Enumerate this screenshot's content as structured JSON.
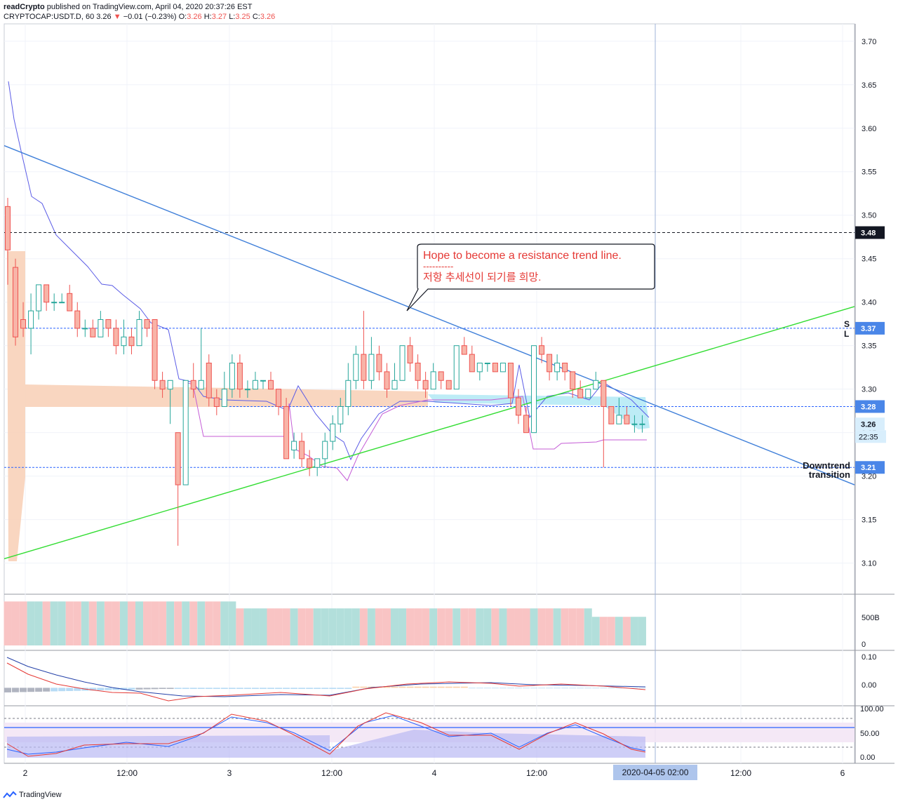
{
  "header": {
    "author": "readCrypto",
    "published_text": "published on TradingView.com, April 04, 2020 20:37:26 EST",
    "symbol": "CRYPTOCAP:USDT.D, 60",
    "last": "3.26",
    "change": "−0.01 (−0.23%)",
    "o_label": "O:",
    "o": "3.26",
    "h_label": "H:",
    "h": "3.27",
    "l_label": "L:",
    "l": "3.25",
    "c_label": "C:",
    "c": "3.26"
  },
  "footer": {
    "brand": "TradingView"
  },
  "colors": {
    "up": "#26a69a",
    "down": "#ef5350",
    "up_fill": "#ffffff",
    "down_fill": "#f8b4a8",
    "trend_blue": "#3f7fd9",
    "trend_green": "#33dd33",
    "level_blue": "#2962ff",
    "ma_blue": "#5b5ce6",
    "purple": "#c45cd6",
    "cloud_peach": "#f8cfb5",
    "cloud_cyan": "#b6eaf5"
  },
  "chart_data": {
    "type": "candlestick",
    "price_axis": {
      "ylim": [
        3.065,
        3.72
      ],
      "ticks": [
        "3.10",
        "3.15",
        "3.20",
        "3.25",
        "3.30",
        "3.35",
        "3.40",
        "3.45",
        "3.50",
        "3.55",
        "3.60",
        "3.65",
        "3.70"
      ]
    },
    "time_axis": {
      "labels": [
        "2",
        "12:00",
        "3",
        "12:00",
        "4",
        "12:00",
        "12:00",
        "6"
      ],
      "cursor_label": "2020-04-05   02:00"
    },
    "price_labels": [
      {
        "value": 3.48,
        "text": "3.48",
        "style": "black"
      },
      {
        "value": 3.37,
        "text": "3.37",
        "style": "blue"
      },
      {
        "value": 3.28,
        "text": "3.28",
        "style": "blue"
      },
      {
        "value": 3.26,
        "text": "3.26",
        "style": "light"
      },
      {
        "value": 3.21,
        "text": "3.21",
        "style": "blue"
      }
    ],
    "countdown": "22:35",
    "levels": [
      3.48,
      3.37,
      3.28,
      3.21
    ],
    "annotations": {
      "callout_en": "Hope to become a resistance trend line.",
      "callout_sep": "----------",
      "callout_kr": "저항 추세선이 되기를 희망.",
      "downtrend_1": "Downtrend",
      "downtrend_2": "transition",
      "s_mark": "S",
      "l_mark": "L"
    },
    "trendlines": [
      {
        "name": "resistance",
        "from": [
          0,
          3.58
        ],
        "to": [
          100,
          3.19
        ]
      },
      {
        "name": "support",
        "from": [
          0,
          3.105
        ],
        "to": [
          100,
          3.395
        ]
      }
    ],
    "candles": [
      [
        3.51,
        3.46,
        3.52,
        3.42
      ],
      [
        3.44,
        3.36,
        3.45,
        3.35
      ],
      [
        3.38,
        3.37,
        3.4,
        3.36
      ],
      [
        3.37,
        3.39,
        3.41,
        3.34
      ],
      [
        3.39,
        3.42,
        3.42,
        3.38
      ],
      [
        3.42,
        3.4,
        3.42,
        3.39
      ],
      [
        3.4,
        3.4,
        3.41,
        3.39
      ],
      [
        3.4,
        3.4,
        3.41,
        3.4
      ],
      [
        3.41,
        3.39,
        3.42,
        3.39
      ],
      [
        3.39,
        3.37,
        3.4,
        3.36
      ],
      [
        3.37,
        3.37,
        3.38,
        3.36
      ],
      [
        3.37,
        3.36,
        3.38,
        3.36
      ],
      [
        3.36,
        3.38,
        3.39,
        3.36
      ],
      [
        3.38,
        3.37,
        3.38,
        3.36
      ],
      [
        3.37,
        3.35,
        3.38,
        3.34
      ],
      [
        3.35,
        3.36,
        3.38,
        3.34
      ],
      [
        3.36,
        3.35,
        3.37,
        3.34
      ],
      [
        3.35,
        3.38,
        3.39,
        3.35
      ],
      [
        3.38,
        3.37,
        3.38,
        3.36
      ],
      [
        3.38,
        3.31,
        3.38,
        3.3
      ],
      [
        3.31,
        3.3,
        3.32,
        3.29
      ],
      [
        3.3,
        3.31,
        3.31,
        3.26
      ],
      [
        3.25,
        3.19,
        3.25,
        3.12
      ],
      [
        3.19,
        3.31,
        3.31,
        3.19
      ],
      [
        3.31,
        3.3,
        3.33,
        3.29
      ],
      [
        3.3,
        3.31,
        3.37,
        3.3
      ],
      [
        3.33,
        3.29,
        3.34,
        3.28
      ],
      [
        3.29,
        3.28,
        3.3,
        3.27
      ],
      [
        3.28,
        3.3,
        3.32,
        3.28
      ],
      [
        3.3,
        3.33,
        3.34,
        3.29
      ],
      [
        3.33,
        3.3,
        3.34,
        3.29
      ],
      [
        3.3,
        3.3,
        3.31,
        3.29
      ],
      [
        3.3,
        3.31,
        3.32,
        3.3
      ],
      [
        3.31,
        3.31,
        3.31,
        3.3
      ],
      [
        3.31,
        3.3,
        3.32,
        3.3
      ],
      [
        3.3,
        3.28,
        3.3,
        3.27
      ],
      [
        3.28,
        3.22,
        3.29,
        3.22
      ],
      [
        3.23,
        3.24,
        3.25,
        3.22
      ],
      [
        3.24,
        3.22,
        3.25,
        3.21
      ],
      [
        3.22,
        3.21,
        3.23,
        3.2
      ],
      [
        3.21,
        3.22,
        3.22,
        3.2
      ],
      [
        3.22,
        3.24,
        3.25,
        3.21
      ],
      [
        3.24,
        3.26,
        3.27,
        3.23
      ],
      [
        3.26,
        3.28,
        3.29,
        3.25
      ],
      [
        3.28,
        3.31,
        3.33,
        3.27
      ],
      [
        3.31,
        3.34,
        3.35,
        3.3
      ],
      [
        3.34,
        3.31,
        3.39,
        3.3
      ],
      [
        3.31,
        3.34,
        3.36,
        3.3
      ],
      [
        3.34,
        3.32,
        3.35,
        3.31
      ],
      [
        3.32,
        3.3,
        3.33,
        3.29
      ],
      [
        3.3,
        3.31,
        3.33,
        3.3
      ],
      [
        3.31,
        3.35,
        3.35,
        3.31
      ],
      [
        3.35,
        3.33,
        3.36,
        3.32
      ],
      [
        3.33,
        3.31,
        3.34,
        3.3
      ],
      [
        3.31,
        3.3,
        3.32,
        3.29
      ],
      [
        3.3,
        3.32,
        3.33,
        3.3
      ],
      [
        3.32,
        3.31,
        3.32,
        3.3
      ],
      [
        3.31,
        3.3,
        3.31,
        3.3
      ],
      [
        3.3,
        3.35,
        3.35,
        3.3
      ],
      [
        3.35,
        3.34,
        3.36,
        3.34
      ],
      [
        3.34,
        3.32,
        3.35,
        3.32
      ],
      [
        3.32,
        3.33,
        3.33,
        3.31
      ],
      [
        3.33,
        3.33,
        3.33,
        3.32
      ],
      [
        3.33,
        3.32,
        3.33,
        3.32
      ],
      [
        3.32,
        3.33,
        3.33,
        3.32
      ],
      [
        3.33,
        3.29,
        3.33,
        3.28
      ],
      [
        3.29,
        3.27,
        3.3,
        3.26
      ],
      [
        3.27,
        3.25,
        3.28,
        3.25
      ],
      [
        3.25,
        3.35,
        3.35,
        3.25
      ],
      [
        3.35,
        3.34,
        3.36,
        3.33
      ],
      [
        3.34,
        3.32,
        3.34,
        3.31
      ],
      [
        3.32,
        3.33,
        3.34,
        3.31
      ],
      [
        3.33,
        3.32,
        3.33,
        3.31
      ],
      [
        3.32,
        3.3,
        3.32,
        3.29
      ],
      [
        3.3,
        3.29,
        3.31,
        3.29
      ],
      [
        3.29,
        3.3,
        3.3,
        3.29
      ],
      [
        3.3,
        3.31,
        3.32,
        3.3
      ],
      [
        3.31,
        3.28,
        3.31,
        3.21
      ],
      [
        3.28,
        3.26,
        3.28,
        3.26
      ],
      [
        3.26,
        3.27,
        3.29,
        3.26
      ],
      [
        3.27,
        3.26,
        3.28,
        3.26
      ],
      [
        3.26,
        3.26,
        3.27,
        3.25
      ],
      [
        3.26,
        3.26,
        3.27,
        3.25
      ]
    ],
    "volume": {
      "scale_ticks": [
        "500B",
        "0"
      ],
      "ylim": [
        0,
        750
      ]
    },
    "macd": {
      "scale_ticks": [
        "0.10",
        "0.00"
      ],
      "ylim": [
        -0.06,
        0.13
      ]
    },
    "stoch_rsi": {
      "scale_ticks": [
        "100.00",
        "50.00",
        "0.00"
      ],
      "ylim": [
        -5,
        110
      ],
      "bands": [
        80,
        20
      ]
    }
  }
}
